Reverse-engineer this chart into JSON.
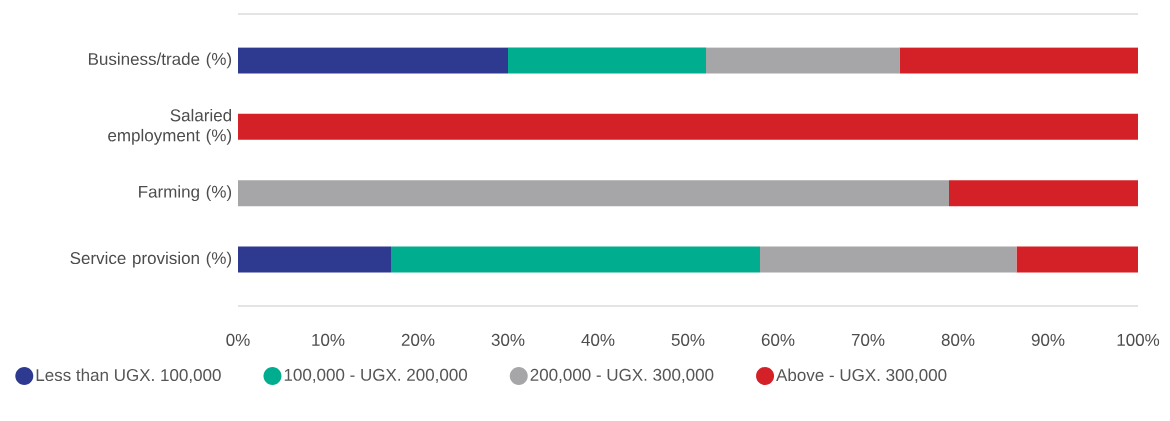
{
  "chart_data": {
    "type": "bar",
    "orientation": "horizontal",
    "stacked": true,
    "categories": [
      "Business/trade (%)",
      "Salaried employment (%)",
      "Farming (%)",
      "Service provision (%)"
    ],
    "series": [
      {
        "name": "Less than UGX. 100,000",
        "color": "#2e3a8f",
        "values": [
          30,
          0,
          0,
          17
        ]
      },
      {
        "name": "100,000 - UGX. 200,000",
        "color": "#00ad8e",
        "values": [
          22,
          0,
          0,
          41
        ]
      },
      {
        "name": "200,000 - UGX. 300,000",
        "color": "#a6a6a8",
        "values": [
          21.5,
          0,
          79,
          28.5
        ]
      },
      {
        "name": "Above - UGX. 300,000",
        "color": "#d42027",
        "values": [
          26.5,
          100,
          21,
          13.5
        ]
      }
    ],
    "xlim": [
      0,
      100
    ],
    "xticks": [
      {
        "value": 0,
        "label": "0%"
      },
      {
        "value": 10,
        "label": "10%"
      },
      {
        "value": 20,
        "label": "20%"
      },
      {
        "value": 30,
        "label": "30%"
      },
      {
        "value": 40,
        "label": "40%"
      },
      {
        "value": 50,
        "label": "50%"
      },
      {
        "value": 60,
        "label": "60%"
      },
      {
        "value": 70,
        "label": "70%"
      },
      {
        "value": 80,
        "label": "80%"
      },
      {
        "value": 90,
        "label": "90%"
      },
      {
        "value": 100,
        "label": "100%"
      }
    ],
    "legend": "bottom"
  }
}
